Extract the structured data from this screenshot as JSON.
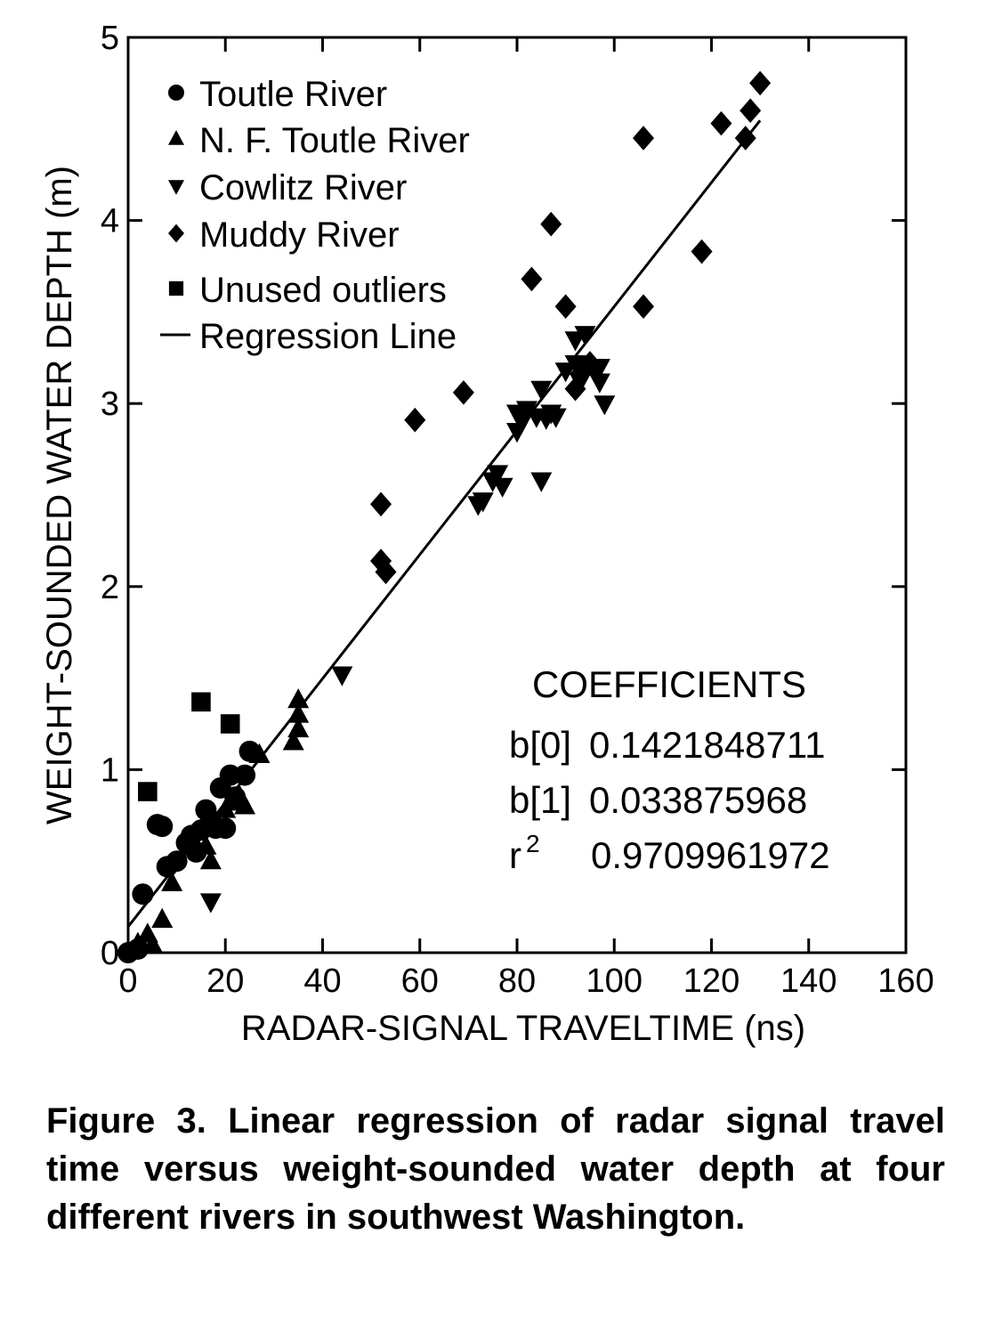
{
  "chart_data": {
    "type": "scatter",
    "title": "",
    "xlabel": "RADAR-SIGNAL TRAVELTIME (ns)",
    "ylabel": "WEIGHT-SOUNDED WATER DEPTH (m)",
    "xlim": [
      0,
      160
    ],
    "ylim": [
      0,
      5
    ],
    "x_ticks": [
      "0",
      "20",
      "40",
      "60",
      "80",
      "100",
      "120",
      "140",
      "160"
    ],
    "y_ticks": [
      "0",
      "1",
      "2",
      "3",
      "4",
      "5"
    ],
    "grid": false,
    "legend_position": "top-left",
    "series": [
      {
        "name": "Toutle River",
        "marker": "circle",
        "points": [
          [
            0,
            0
          ],
          [
            2,
            0.02
          ],
          [
            3,
            0.32
          ],
          [
            6,
            0.7
          ],
          [
            7,
            0.69
          ],
          [
            8,
            0.47
          ],
          [
            10,
            0.5
          ],
          [
            12,
            0.6
          ],
          [
            13,
            0.64
          ],
          [
            14,
            0.55
          ],
          [
            15,
            0.67
          ],
          [
            16,
            0.78
          ],
          [
            17,
            0.72
          ],
          [
            18,
            0.68
          ],
          [
            19,
            0.9
          ],
          [
            20,
            0.68
          ],
          [
            21,
            0.97
          ],
          [
            22,
            0.85
          ],
          [
            24,
            0.97
          ],
          [
            25,
            1.1
          ]
        ]
      },
      {
        "name": "N. F. Toutle River",
        "marker": "triangle-up",
        "points": [
          [
            2,
            0.05
          ],
          [
            4,
            0.1
          ],
          [
            5,
            0.04
          ],
          [
            7,
            0.18
          ],
          [
            9,
            0.38
          ],
          [
            16,
            0.58
          ],
          [
            17,
            0.5
          ],
          [
            20,
            0.78
          ],
          [
            22,
            0.82
          ],
          [
            23,
            0.85
          ],
          [
            24,
            0.8
          ],
          [
            27,
            1.08
          ],
          [
            34,
            1.15
          ],
          [
            35,
            1.22
          ],
          [
            35,
            1.3
          ],
          [
            35,
            1.38
          ]
        ]
      },
      {
        "name": "Cowlitz River",
        "marker": "triangle-down",
        "points": [
          [
            17,
            0.28
          ],
          [
            44,
            1.52
          ],
          [
            72,
            2.45
          ],
          [
            73,
            2.47
          ],
          [
            75,
            2.58
          ],
          [
            76,
            2.62
          ],
          [
            77,
            2.55
          ],
          [
            80,
            2.85
          ],
          [
            80,
            2.95
          ],
          [
            81,
            2.9
          ],
          [
            82,
            2.97
          ],
          [
            84,
            2.93
          ],
          [
            85,
            2.58
          ],
          [
            85,
            3.08
          ],
          [
            86,
            2.92
          ],
          [
            87,
            2.95
          ],
          [
            88,
            2.93
          ],
          [
            90,
            3.18
          ],
          [
            92,
            3.22
          ],
          [
            92,
            3.35
          ],
          [
            93,
            3.12
          ],
          [
            94,
            3.38
          ],
          [
            96,
            3.2
          ],
          [
            97,
            3.2
          ],
          [
            97,
            3.12
          ],
          [
            98,
            3.0
          ]
        ]
      },
      {
        "name": "Muddy River",
        "marker": "diamond",
        "points": [
          [
            52,
            2.45
          ],
          [
            52,
            2.14
          ],
          [
            53,
            2.08
          ],
          [
            59,
            2.91
          ],
          [
            69,
            3.06
          ],
          [
            83,
            3.68
          ],
          [
            87,
            3.98
          ],
          [
            90,
            3.53
          ],
          [
            92,
            3.08
          ],
          [
            93,
            3.16
          ],
          [
            95,
            3.22
          ],
          [
            106,
            4.45
          ],
          [
            106,
            3.53
          ],
          [
            118,
            3.83
          ],
          [
            122,
            4.53
          ],
          [
            127,
            4.45
          ],
          [
            128,
            4.6
          ],
          [
            130,
            4.75
          ]
        ]
      },
      {
        "name": "Unused outliers",
        "marker": "square",
        "points": [
          [
            4,
            0.88
          ],
          [
            15,
            1.37
          ],
          [
            21,
            1.25
          ]
        ]
      }
    ],
    "regression": {
      "name": "Regression Line",
      "b0": 0.1421848711,
      "b1": 0.033875968,
      "x_range": [
        0,
        130
      ]
    },
    "coefficients": {
      "heading": "COEFFICIENTS",
      "rows": [
        {
          "label": "b[0]",
          "value": "0.1421848711"
        },
        {
          "label": "b[1]",
          "value": "0.033875968"
        },
        {
          "label": "r",
          "sup": "2",
          "value": "0.9709961972"
        }
      ]
    }
  },
  "caption": "Figure 3. Linear regression of radar signal travel time versus weight-sounded water depth at four different rivers in southwest Washington."
}
